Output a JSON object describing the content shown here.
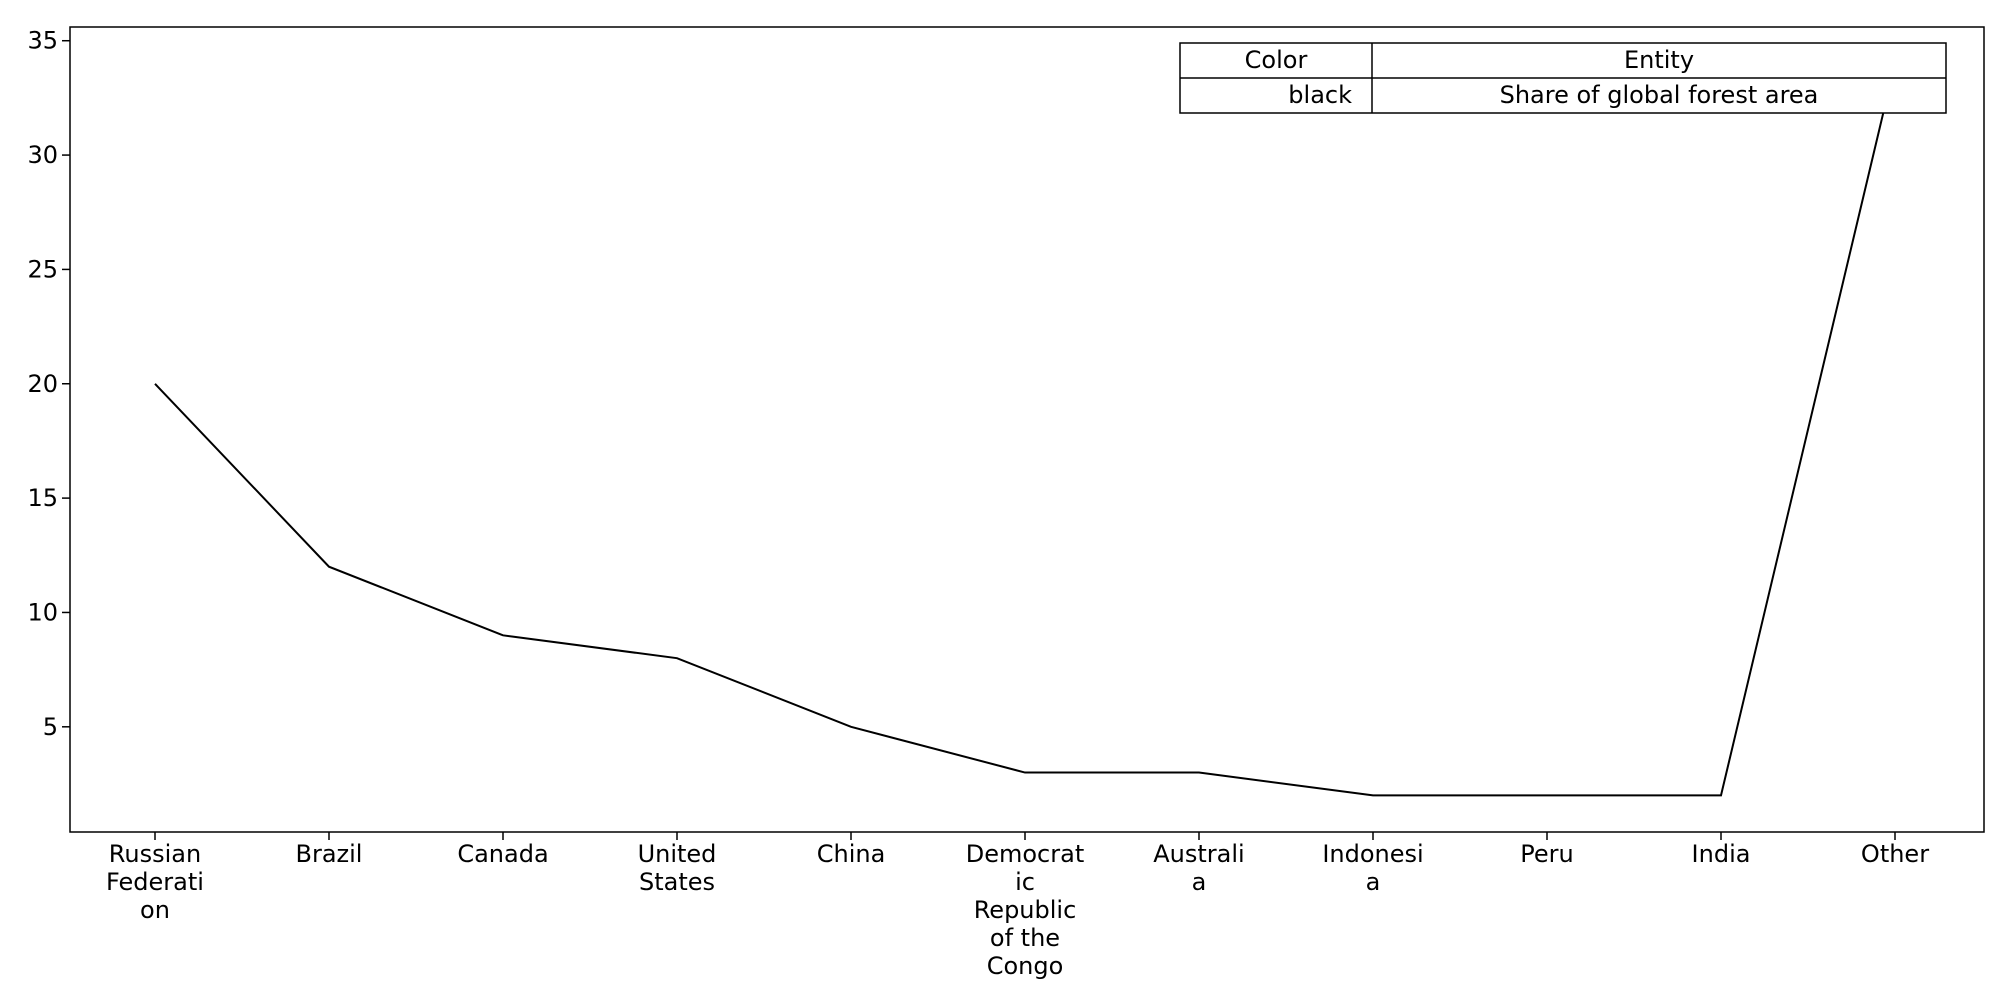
{
  "chart_data": {
    "type": "line",
    "title": "",
    "xlabel": "",
    "ylabel": "",
    "categories": [
      "Russian Federation",
      "Brazil",
      "Canada",
      "United States",
      "China",
      "Democratic Republic of the Congo",
      "Australia",
      "Indonesia",
      "Peru",
      "India",
      "Other"
    ],
    "category_display": [
      [
        "Russian",
        "Federati",
        "on"
      ],
      [
        "Brazil"
      ],
      [
        "Canada"
      ],
      [
        "United",
        "States"
      ],
      [
        "China"
      ],
      [
        "Democrat",
        "ic",
        "Republic",
        "of the",
        "Congo"
      ],
      [
        "Australi",
        "a"
      ],
      [
        "Indonesi",
        "a"
      ],
      [
        "Peru"
      ],
      [
        "India"
      ],
      [
        "Other"
      ]
    ],
    "series": [
      {
        "name": "Share of global forest area",
        "color": "#000000",
        "values": [
          20,
          12,
          9,
          8,
          5,
          3,
          3,
          2,
          2,
          2,
          34
        ]
      }
    ],
    "ylim": [
      0.4,
      35.6
    ],
    "yticks": [
      5,
      10,
      15,
      20,
      25,
      30,
      35
    ],
    "grid": false,
    "legend": {
      "placement": "top-right",
      "header": [
        "Color",
        "Entity"
      ],
      "rows": [
        [
          "black",
          "Share of global forest area"
        ]
      ]
    }
  }
}
